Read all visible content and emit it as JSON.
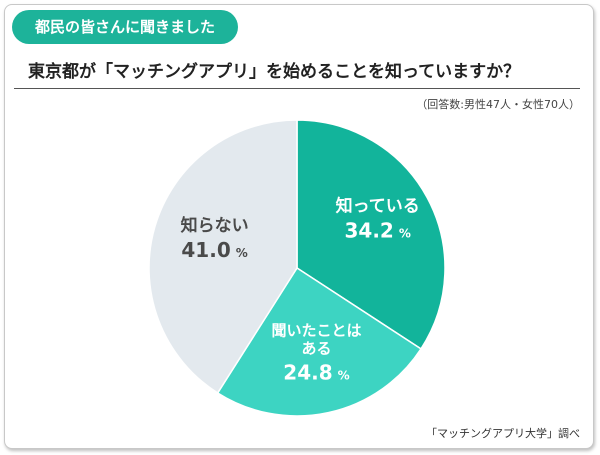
{
  "header": {
    "badge": "都民の皆さんに聞きました",
    "question": "東京都が「マッチングアプリ」を始めることを知っていますか？",
    "respondents": "（回答数:男性47人・女性70人）"
  },
  "footer": {
    "source": "「マッチングアプリ大学」調べ"
  },
  "colors": {
    "accent": "#1db39a",
    "knows": "#12b49b",
    "heard": "#3dd4c2",
    "unknown": "#e3e9ee"
  },
  "chart_data": {
    "type": "pie",
    "unit": "%",
    "slices": [
      {
        "label": "知っている",
        "value": 34.2,
        "value_text": "34.2",
        "color": "#12b49b",
        "text_color": "#ffffff"
      },
      {
        "label": "聞いたことはある",
        "label_lines": [
          "聞いたことは",
          "ある"
        ],
        "value": 24.8,
        "value_text": "24.8",
        "color": "#3dd4c2",
        "text_color": "#ffffff"
      },
      {
        "label": "知らない",
        "value": 41.0,
        "value_text": "41.0",
        "color": "#e3e9ee",
        "text_color": "#4a4a4a"
      }
    ]
  }
}
